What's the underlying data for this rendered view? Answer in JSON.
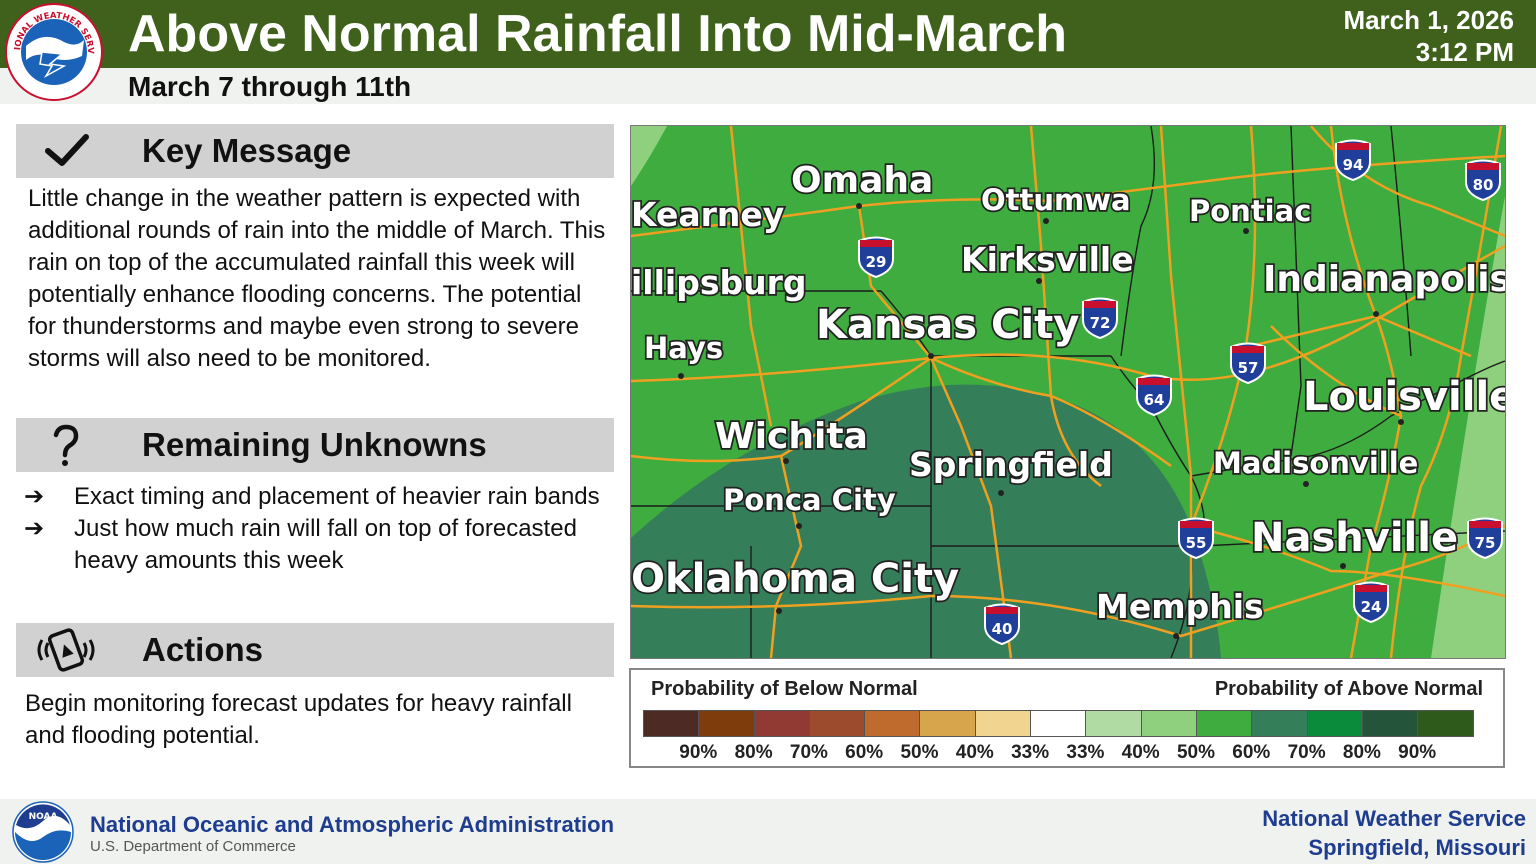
{
  "header": {
    "title": "Above Normal Rainfall Into Mid-March",
    "subtitle": "March 7 through 11th",
    "date": "March 1, 2026",
    "time": "3:12 PM",
    "logo_text": "NATIONAL WEATHER SERVICE"
  },
  "sections": {
    "key_message": {
      "icon": "checkmark-icon",
      "title": "Key Message",
      "text": "Little change in the weather pattern is expected with additional rounds of rain into the middle of March. This rain on top of the accumulated rainfall this week will potentially enhance flooding concerns. The potential for thunderstorms and maybe even strong to severe storms will also need to be monitored."
    },
    "remaining_unknowns": {
      "icon": "question-mark-icon",
      "title": "Remaining Unknowns",
      "bullet": "➔",
      "items": [
        "Exact timing and placement of heavier rain bands",
        "Just how much rain will fall on top of forecasted heavy amounts this week"
      ]
    },
    "actions": {
      "icon": "phone-alert-icon",
      "title": "Actions",
      "text": "Begin monitoring forecast updates for heavy rainfall and flooding potential."
    }
  },
  "map": {
    "cities": [
      "Omaha",
      "Ottumwa",
      "Pontiac",
      "Kearney",
      "Kirksville",
      "Indianapolis",
      "illipsburg",
      "Kansas City",
      "Hays",
      "Louisville",
      "Wichita",
      "Springfield",
      "Madisonville",
      "Ponca City",
      "Nashville",
      "Oklahoma City",
      "Memphis"
    ],
    "interstates": [
      "94",
      "80",
      "29",
      "72",
      "57",
      "64",
      "55",
      "75",
      "24",
      "40"
    ],
    "colors": {
      "above_50": "#3eac3e",
      "above_70": "#347e5a",
      "above_40": "#8fd07f",
      "roads": "#f0a020"
    }
  },
  "legend": {
    "below_title": "Probability of Below Normal",
    "above_title": "Probability of Above Normal",
    "labels": [
      "90%",
      "80%",
      "70%",
      "60%",
      "50%",
      "40%",
      "33%",
      "33%",
      "40%",
      "50%",
      "60%",
      "70%",
      "80%",
      "90%"
    ],
    "colors": [
      "#4e2a24",
      "#7e3c0d",
      "#913a33",
      "#9c4b2c",
      "#bf6b2e",
      "#d7a54b",
      "#f0d48f",
      "#ffffff",
      "#b0dca4",
      "#8fd07f",
      "#3eac3e",
      "#347e5a",
      "#0a8a3b",
      "#24553a",
      "#2e5b1c"
    ]
  },
  "footer": {
    "noaa_name": "National Oceanic and Atmospheric Administration",
    "noaa_sub": "U.S. Department of Commerce",
    "noaa_logo_text": "NOAA",
    "office_line1": "National Weather Service",
    "office_line2": "Springfield, Missouri"
  }
}
